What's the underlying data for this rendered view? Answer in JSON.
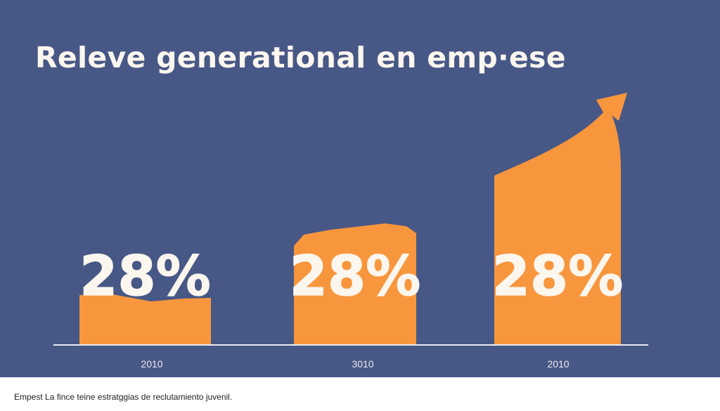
{
  "chart_data": {
    "type": "bar",
    "title": "Releve generational en emp·ese",
    "categories": [
      "2010",
      "3010",
      "2010"
    ],
    "values": [
      28,
      28,
      28
    ],
    "data_labels": [
      "28%",
      "28%",
      "28%"
    ],
    "xlabel": "",
    "ylabel": "",
    "grid": false,
    "trend_arrow": true
  },
  "footer": {
    "text": "Empest La fince teine estratggias de reclutamiento juvenil."
  },
  "colors": {
    "background": "#485886",
    "bar": "#f8963d",
    "text": "#fbf6ee",
    "axis": "#e9ecf2"
  }
}
